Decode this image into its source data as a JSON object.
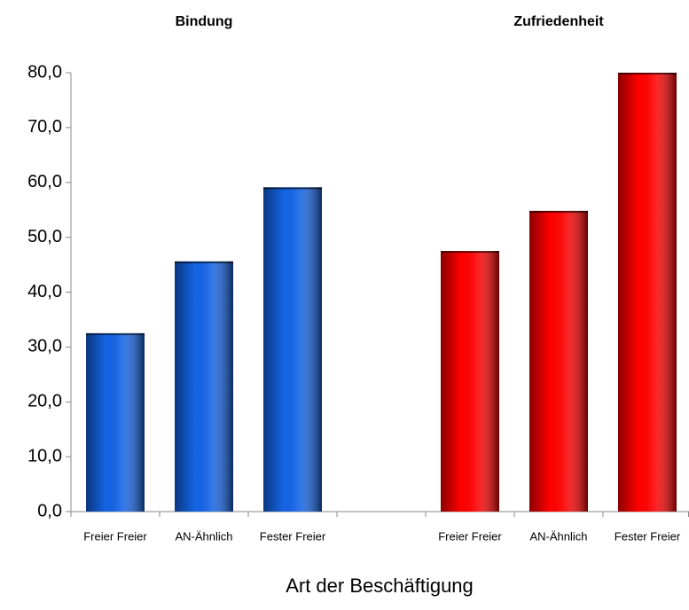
{
  "chart_data": {
    "type": "bar",
    "x_label": "Art der Beschäftigung",
    "categories": [
      "Freier Freier",
      "AN-Ähnlich",
      "Fester Freier",
      null,
      "Freier Freier",
      "AN-Ähnlich",
      "Fester Freier"
    ],
    "series": [
      {
        "name": "Bindung",
        "color": "#1464e6",
        "values": [
          32.5,
          45.6,
          59.1,
          null,
          null,
          null,
          null
        ]
      },
      {
        "name": "Zufriedenheit",
        "color": "#ff0000",
        "values": [
          null,
          null,
          null,
          null,
          47.5,
          54.8,
          80.0
        ]
      }
    ],
    "ylim": [
      0,
      80
    ],
    "yticks": [
      {
        "value": 0,
        "label": "0,0"
      },
      {
        "value": 10,
        "label": "10,0"
      },
      {
        "value": 20,
        "label": "20,0"
      },
      {
        "value": 30,
        "label": "30,0"
      },
      {
        "value": 40,
        "label": "40,0"
      },
      {
        "value": 50,
        "label": "50,0"
      },
      {
        "value": 60,
        "label": "60,0"
      },
      {
        "value": 70,
        "label": "70,0"
      },
      {
        "value": 80,
        "label": "80,0"
      }
    ]
  }
}
